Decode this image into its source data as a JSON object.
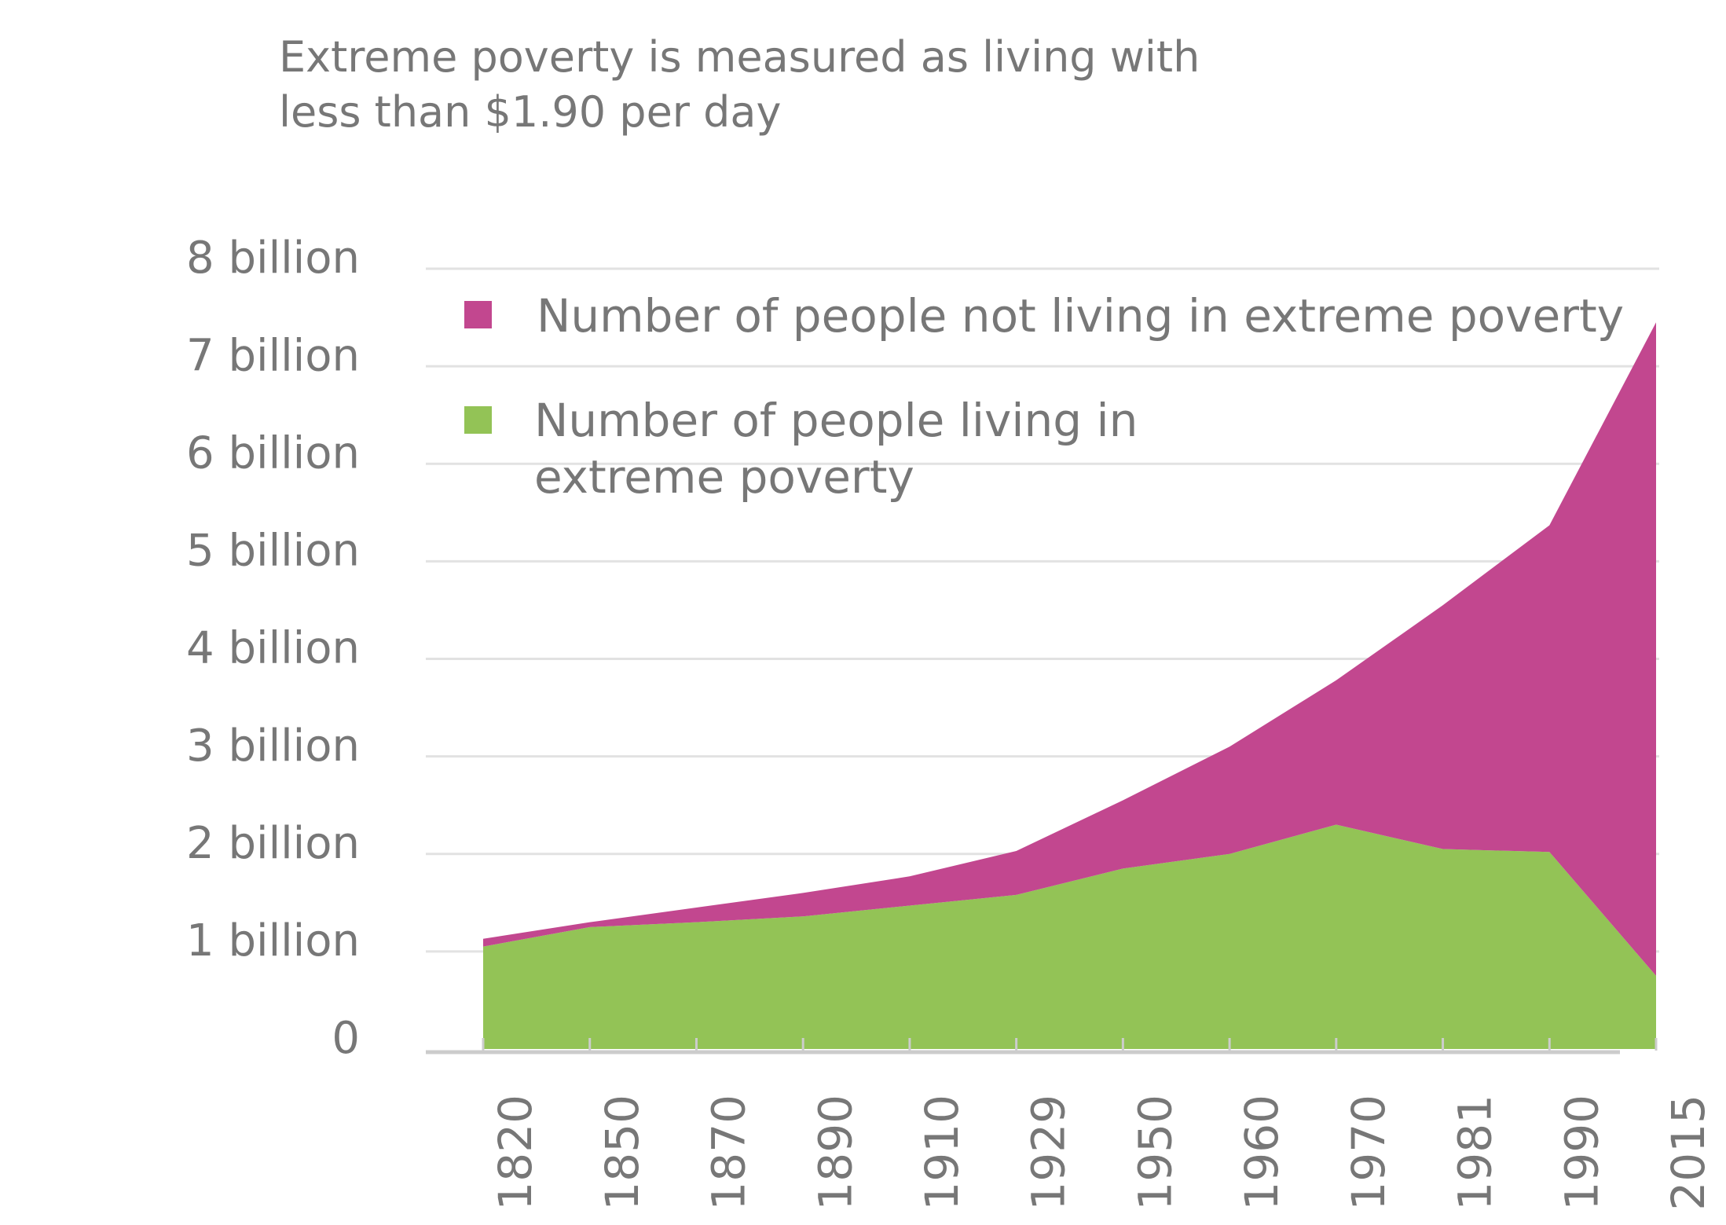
{
  "chart_data": {
    "type": "area",
    "stacked": true,
    "title": "Extreme poverty is measured as living with less than $1.90 per day",
    "categories": [
      "1820",
      "1850",
      "1870",
      "1890",
      "1910",
      "1929",
      "1950",
      "1960",
      "1970",
      "1981",
      "1990",
      "2015"
    ],
    "series": [
      {
        "name": "Number of people living in extreme poverty",
        "color": "#93c356",
        "values": [
          1.05,
          1.25,
          1.3,
          1.36,
          1.47,
          1.58,
          1.85,
          2.0,
          2.3,
          2.05,
          2.02,
          0.75
        ]
      },
      {
        "name": "Number of people not living in extreme poverty",
        "color": "#c2478f",
        "values": [
          0.08,
          0.05,
          0.15,
          0.24,
          0.3,
          0.45,
          0.7,
          1.1,
          1.48,
          2.5,
          3.35,
          6.7
        ]
      }
    ],
    "ylim": [
      0,
      8
    ],
    "yticks": [
      {
        "value": 0,
        "label": "0"
      },
      {
        "value": 1,
        "label": "1 billion"
      },
      {
        "value": 2,
        "label": "2 billion"
      },
      {
        "value": 3,
        "label": "3 billion"
      },
      {
        "value": 4,
        "label": "4 billion"
      },
      {
        "value": 5,
        "label": "5 billion"
      },
      {
        "value": 6,
        "label": "6 billion"
      },
      {
        "value": 7,
        "label": "7 billion"
      },
      {
        "value": 8,
        "label": "8 billion"
      }
    ],
    "grid": true
  }
}
